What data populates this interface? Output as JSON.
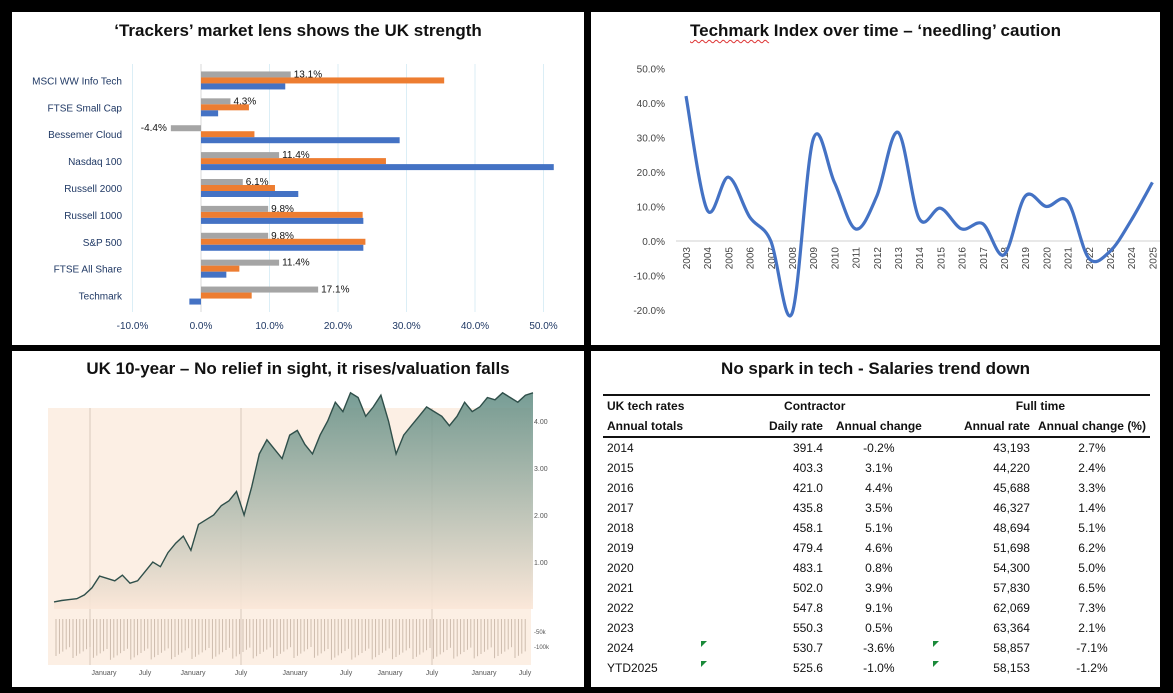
{
  "panels": {
    "trackers_title": "‘Trackers’ market lens shows the UK strength",
    "techmark_title_word": "Techmark",
    "techmark_title_rest": " Index over time – ‘needling’ caution",
    "gilt_title": "UK 10-year – No relief in sight, it rises/valuation falls",
    "salaries_title": "No spark in tech - Salaries trend down"
  },
  "chart_data": [
    {
      "type": "bar",
      "orientation": "horizontal",
      "title": "‘Trackers’ market lens shows the UK strength",
      "categories": [
        "MSCI WW Info Tech",
        "FTSE Small Cap",
        "Bessemer Cloud",
        "Nasdaq 100",
        "Russell 2000",
        "Russell 1000",
        "S&P 500",
        "FTSE All Share",
        "Techmark"
      ],
      "series": [
        {
          "name": "grey",
          "color": "#a5a5a5",
          "values": [
            13.1,
            4.3,
            -4.4,
            11.4,
            6.1,
            9.8,
            9.8,
            11.4,
            17.1
          ],
          "labels": [
            "13.1%",
            "4.3%",
            "-4.4%",
            "11.4%",
            "6.1%",
            "9.8%",
            "9.8%",
            "11.4%",
            "17.1%"
          ]
        },
        {
          "name": "orange",
          "color": "#ed7d31",
          "values": [
            35.5,
            7.0,
            7.8,
            27.0,
            10.8,
            23.6,
            24.0,
            5.6,
            7.4
          ]
        },
        {
          "name": "blue",
          "color": "#4472c4",
          "values": [
            12.3,
            2.5,
            29.0,
            51.5,
            14.2,
            23.7,
            23.7,
            3.7,
            -1.7
          ]
        }
      ],
      "xlim": [
        -10,
        52
      ],
      "xticks": [
        "-10.0%",
        "0.0%",
        "10.0%",
        "20.0%",
        "30.0%",
        "40.0%",
        "50.0%"
      ],
      "xtick_values": [
        -10,
        0,
        10,
        20,
        30,
        40,
        50
      ]
    },
    {
      "type": "line",
      "title": "Techmark Index over time – ‘needling’ caution",
      "x": [
        "2003",
        "2004",
        "2005",
        "2006",
        "2007",
        "2008",
        "2009",
        "2010",
        "2011",
        "2012",
        "2013",
        "2014",
        "2015",
        "2016",
        "2017",
        "2018",
        "2019",
        "2020",
        "2021",
        "2022",
        "2023",
        "2024",
        "2025"
      ],
      "values": [
        42,
        9,
        18.5,
        7,
        0,
        -21,
        29.5,
        17,
        3.5,
        13,
        31.5,
        6.5,
        9.5,
        3.5,
        5,
        -4,
        13,
        10,
        11.5,
        -5,
        -3,
        6,
        17
      ],
      "color": "#4472c4",
      "ylim": [
        -20,
        50
      ],
      "yticks": [
        "-20.0%",
        "-10.0%",
        "0.0%",
        "10.0%",
        "20.0%",
        "30.0%",
        "40.0%",
        "50.0%"
      ],
      "ytick_values": [
        -20,
        -10,
        0,
        10,
        20,
        30,
        40,
        50
      ]
    },
    {
      "type": "area",
      "title": "UK 10-year – No relief in sight, it rises/valuation falls",
      "yticks": [
        "1.00",
        "2.00",
        "3.00",
        "4.00"
      ],
      "ytick_values": [
        1,
        2,
        3,
        4
      ],
      "volume_ticks": [
        "-50k",
        "-100k"
      ],
      "xticks": [
        "January",
        "July",
        "January",
        "July",
        "January",
        "July",
        "January",
        "July",
        "January",
        "July"
      ],
      "ylim": [
        0,
        4.6
      ],
      "values": [
        0.15,
        0.18,
        0.2,
        0.22,
        0.3,
        0.45,
        0.7,
        0.65,
        0.6,
        0.72,
        0.55,
        0.6,
        0.8,
        1.0,
        0.9,
        1.2,
        1.4,
        1.55,
        1.25,
        1.8,
        1.9,
        2.0,
        2.2,
        2.3,
        2.5,
        2.0,
        2.6,
        3.3,
        3.6,
        3.4,
        3.2,
        3.7,
        3.8,
        3.5,
        3.3,
        3.7,
        4.0,
        4.4,
        4.2,
        4.6,
        4.5,
        4.1,
        4.3,
        4.55,
        4.0,
        3.3,
        3.7,
        3.9,
        4.1,
        4.3,
        4.2,
        4.1,
        3.9,
        4.1,
        4.4,
        4.2,
        4.3,
        4.5,
        4.45,
        4.6,
        4.5,
        4.4,
        4.55,
        4.6
      ]
    },
    {
      "type": "table",
      "title": "No spark in tech - Salaries trend down",
      "header1": [
        "UK tech rates",
        "",
        "Contractor",
        "",
        "Full time",
        ""
      ],
      "header2": [
        "Annual totals",
        "Daily rate",
        "Annual change",
        "Annual rate",
        "Annual change (%)"
      ],
      "rows": [
        [
          "2014",
          "391.4",
          "-0.2%",
          "43,193",
          "2.7%"
        ],
        [
          "2015",
          "403.3",
          "3.1%",
          "44,220",
          "2.4%"
        ],
        [
          "2016",
          "421.0",
          "4.4%",
          "45,688",
          "3.3%"
        ],
        [
          "2017",
          "435.8",
          "3.5%",
          "46,327",
          "1.4%"
        ],
        [
          "2018",
          "458.1",
          "5.1%",
          "48,694",
          "5.1%"
        ],
        [
          "2019",
          "479.4",
          "4.6%",
          "51,698",
          "6.2%"
        ],
        [
          "2020",
          "483.1",
          "0.8%",
          "54,300",
          "5.0%"
        ],
        [
          "2021",
          "502.0",
          "3.9%",
          "57,830",
          "6.5%"
        ],
        [
          "2022",
          "547.8",
          "9.1%",
          "62,069",
          "7.3%"
        ],
        [
          "2023",
          "550.3",
          "0.5%",
          "63,364",
          "2.1%"
        ],
        [
          "2024",
          "530.7",
          "-3.6%",
          "58,857",
          "-7.1%"
        ],
        [
          "YTD2025",
          "525.6",
          "-1.0%",
          "58,153",
          "-1.2%"
        ]
      ],
      "flagged_rows": [
        10,
        11
      ]
    }
  ]
}
